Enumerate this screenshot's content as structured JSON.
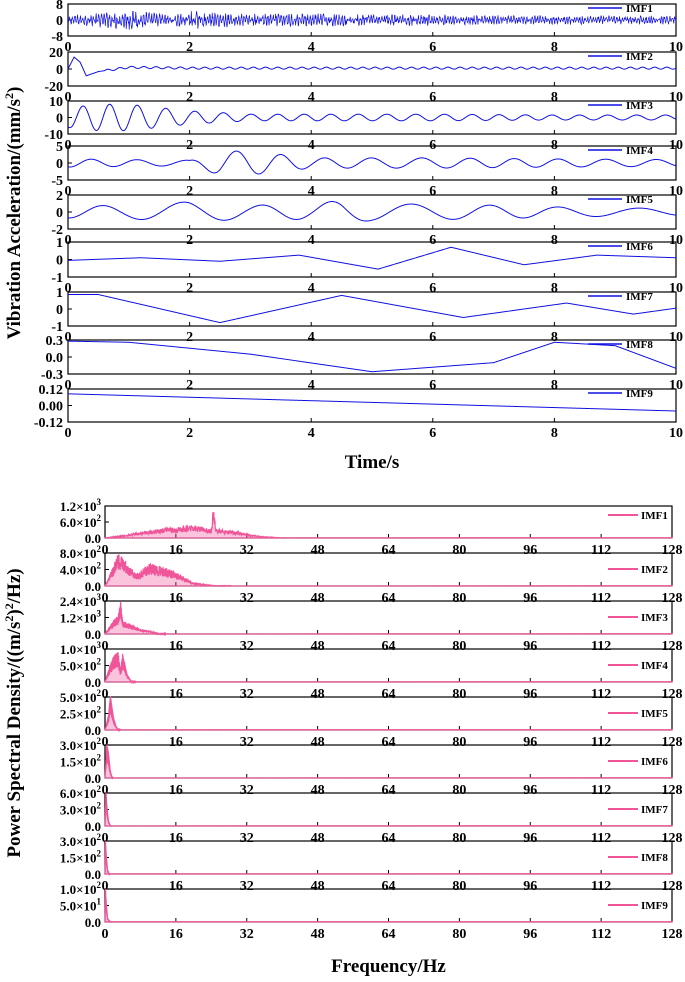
{
  "chart_data": [
    {
      "type": "line",
      "xlabel": "Time/s",
      "ylabel_parts": [
        "Vibration Acceleration/(mm/s",
        "2",
        ")"
      ],
      "xlim": [
        0,
        10
      ],
      "xticks": [
        "0",
        "2",
        "4",
        "6",
        "8",
        "10"
      ],
      "color": "#1010e0",
      "legend_position": "top-right",
      "series": [
        {
          "name": "IMF1",
          "ylim": [
            -8,
            8
          ],
          "yticks": [
            "8",
            "0",
            "-8"
          ],
          "description_points": {
            "x": [
              0,
              0.5,
              1,
              1.5,
              2,
              2.5,
              3,
              4,
              5,
              6,
              7,
              8,
              9,
              10
            ],
            "amplitude": [
              2,
              3,
              5,
              3,
              4,
              3,
              3,
              3,
              2.5,
              2.5,
              2,
              2,
              2,
              2
            ]
          }
        },
        {
          "name": "IMF2",
          "ylim": [
            -20,
            20
          ],
          "yticks": [
            "20",
            "0",
            "-20"
          ],
          "description_points": {
            "x": [
              0,
              0.1,
              0.2,
              0.3,
              0.5,
              1,
              2,
              4,
              6,
              8,
              10
            ],
            "y": [
              0,
              14,
              8,
              -8,
              -3,
              2,
              1,
              1,
              1,
              1,
              1
            ]
          }
        },
        {
          "name": "IMF3",
          "ylim": [
            -10,
            10
          ],
          "yticks": [
            "10",
            "0",
            "-10"
          ],
          "description_points": {
            "x": [
              0,
              0.5,
              1,
              1.5,
              2,
              3,
              4,
              6,
              8,
              10
            ],
            "amplitude": [
              6,
              8,
              8,
              6,
              4,
              2,
              2,
              2,
              1.5,
              1.5
            ]
          }
        },
        {
          "name": "IMF4",
          "ylim": [
            -5,
            5
          ],
          "yticks": [
            "5",
            "0",
            "-5"
          ],
          "description_points": {
            "x": [
              0,
              1,
              2,
              2.5,
              3,
              4,
              6,
              8,
              10
            ],
            "amplitude": [
              1.2,
              1,
              0.8,
              3.5,
              3.5,
              1.5,
              1.5,
              1.2,
              1
            ]
          }
        },
        {
          "name": "IMF5",
          "ylim": [
            -2,
            2
          ],
          "yticks": [
            "2",
            "0",
            "-2"
          ],
          "description_points": {
            "x": [
              0,
              1,
              2,
              3,
              4,
              4.5,
              5,
              6,
              7,
              8,
              9,
              10
            ],
            "amplitude": [
              0.7,
              0.8,
              1.2,
              0.8,
              0.9,
              1.4,
              1,
              0.9,
              0.8,
              0.6,
              0.5,
              0.4
            ]
          }
        },
        {
          "name": "IMF6",
          "ylim": [
            -1,
            1
          ],
          "yticks": [
            "1",
            "0",
            "-1"
          ],
          "description_points": {
            "x": [
              0,
              1.2,
              2.5,
              3.8,
              5.1,
              6.3,
              7.5,
              8.7,
              10
            ],
            "y": [
              -0.05,
              0.1,
              -0.1,
              0.25,
              -0.55,
              0.7,
              -0.3,
              0.25,
              0.1
            ]
          }
        },
        {
          "name": "IMF7",
          "ylim": [
            -1,
            1
          ],
          "yticks": [
            "1",
            "0",
            "-1"
          ],
          "description_points": {
            "x": [
              0,
              0.5,
              2.5,
              4.5,
              6.5,
              8.2,
              9.3,
              10
            ],
            "y": [
              0.85,
              0.85,
              -0.8,
              0.8,
              -0.5,
              0.35,
              -0.3,
              0.05
            ]
          }
        },
        {
          "name": "IMF8",
          "ylim": [
            -0.3,
            0.3
          ],
          "yticks": [
            "0.3",
            "0.0",
            "-0.3"
          ],
          "description_points": {
            "x": [
              0,
              1,
              3,
              5,
              7,
              8,
              9,
              10
            ],
            "y": [
              0.28,
              0.26,
              0.05,
              -0.26,
              -0.1,
              0.26,
              0.2,
              -0.2
            ]
          }
        },
        {
          "name": "IMF9",
          "ylim": [
            -0.12,
            0.12
          ],
          "yticks": [
            "0.12",
            "0.00",
            "-0.12"
          ],
          "description_points": {
            "x": [
              0,
              10
            ],
            "y": [
              0.085,
              -0.04
            ]
          }
        }
      ]
    },
    {
      "type": "area",
      "xlabel": "Frequency/Hz",
      "ylabel_parts": [
        "Power Spectral Density/((m/s",
        "2",
        ")",
        "2",
        "/Hz)"
      ],
      "xlim": [
        0,
        128
      ],
      "xticks": [
        "0",
        "16",
        "32",
        "48",
        "64",
        "80",
        "96",
        "112",
        "128"
      ],
      "color": "#f0559a",
      "legend_position": "top-right",
      "series": [
        {
          "name": "IMF1",
          "ylim": [
            0,
            1200
          ],
          "yticks": [
            "1.2×10",
            "6.0×10",
            "0.0"
          ],
          "ytick_exp": [
            "3",
            "2",
            ""
          ],
          "description_points": {
            "x": [
              0,
              5,
              10,
              15,
              20,
              24,
              24.5,
              25,
              30,
              35,
              40
            ],
            "y": [
              0,
              100,
              250,
              350,
              420,
              300,
              1150,
              300,
              200,
              50,
              0
            ]
          }
        },
        {
          "name": "IMF2",
          "ylim": [
            0,
            800
          ],
          "yticks": [
            "8.0×10",
            "4.0×10",
            "0.0"
          ],
          "ytick_exp": [
            "2",
            "2",
            ""
          ],
          "description_points": {
            "x": [
              0,
              2,
              3,
              5,
              7,
              10,
              13,
              16,
              20,
              25
            ],
            "y": [
              0,
              450,
              700,
              500,
              250,
              480,
              400,
              300,
              60,
              0
            ]
          }
        },
        {
          "name": "IMF3",
          "ylim": [
            0,
            2400
          ],
          "yticks": [
            "2.4×10",
            "1.2×10",
            "0.0"
          ],
          "ytick_exp": [
            "3",
            "3",
            ""
          ],
          "description_points": {
            "x": [
              0,
              2,
              3,
              3.5,
              4,
              6,
              8,
              10,
              12
            ],
            "y": [
              0,
              900,
              1200,
              2200,
              800,
              600,
              300,
              200,
              0
            ]
          }
        },
        {
          "name": "IMF4",
          "ylim": [
            0,
            1000
          ],
          "yticks": [
            "1.0×10",
            "5.0×10",
            "0.0"
          ],
          "ytick_exp": [
            "3",
            "2",
            ""
          ],
          "description_points": {
            "x": [
              0,
              1,
              2,
              3,
              3.5,
              4,
              5,
              6
            ],
            "y": [
              0,
              400,
              700,
              800,
              300,
              750,
              200,
              0
            ]
          }
        },
        {
          "name": "IMF5",
          "ylim": [
            0,
            500
          ],
          "yticks": [
            "5.0×10",
            "2.5×10",
            "0.0"
          ],
          "ytick_exp": [
            "2",
            "2",
            ""
          ],
          "description_points": {
            "x": [
              0,
              0.8,
              1.2,
              1.6,
              2,
              2.5,
              3
            ],
            "y": [
              0,
              200,
              480,
              300,
              150,
              50,
              0
            ]
          }
        },
        {
          "name": "IMF6",
          "ylim": [
            0,
            300
          ],
          "yticks": [
            "3.0×10",
            "1.5×10",
            "0.0"
          ],
          "ytick_exp": [
            "2",
            "2",
            ""
          ],
          "description_points": {
            "x": [
              0,
              0.4,
              0.8,
              1.2,
              1.6
            ],
            "y": [
              0,
              280,
              200,
              60,
              0
            ]
          }
        },
        {
          "name": "IMF7",
          "ylim": [
            0,
            600
          ],
          "yticks": [
            "6.0×10",
            "3.0×10",
            "0.0"
          ],
          "ytick_exp": [
            "2",
            "2",
            ""
          ],
          "description_points": {
            "x": [
              0,
              0.2,
              0.4,
              0.8,
              1.2
            ],
            "y": [
              0,
              600,
              350,
              80,
              0
            ]
          }
        },
        {
          "name": "IMF8",
          "ylim": [
            0,
            300
          ],
          "yticks": [
            "3.0×10",
            "1.5×10",
            "0.0"
          ],
          "ytick_exp": [
            "2",
            "2",
            ""
          ],
          "description_points": {
            "x": [
              0,
              0.1,
              0.3,
              0.6,
              1
            ],
            "y": [
              0,
              280,
              150,
              30,
              0
            ]
          }
        },
        {
          "name": "IMF9",
          "ylim": [
            0,
            100
          ],
          "yticks": [
            "1.0×10",
            "5.0×10",
            "0.0"
          ],
          "ytick_exp": [
            "2",
            "1",
            ""
          ],
          "description_points": {
            "x": [
              0,
              0.1,
              0.3,
              0.6,
              1
            ],
            "y": [
              0,
              95,
              50,
              10,
              0
            ]
          }
        }
      ]
    }
  ]
}
